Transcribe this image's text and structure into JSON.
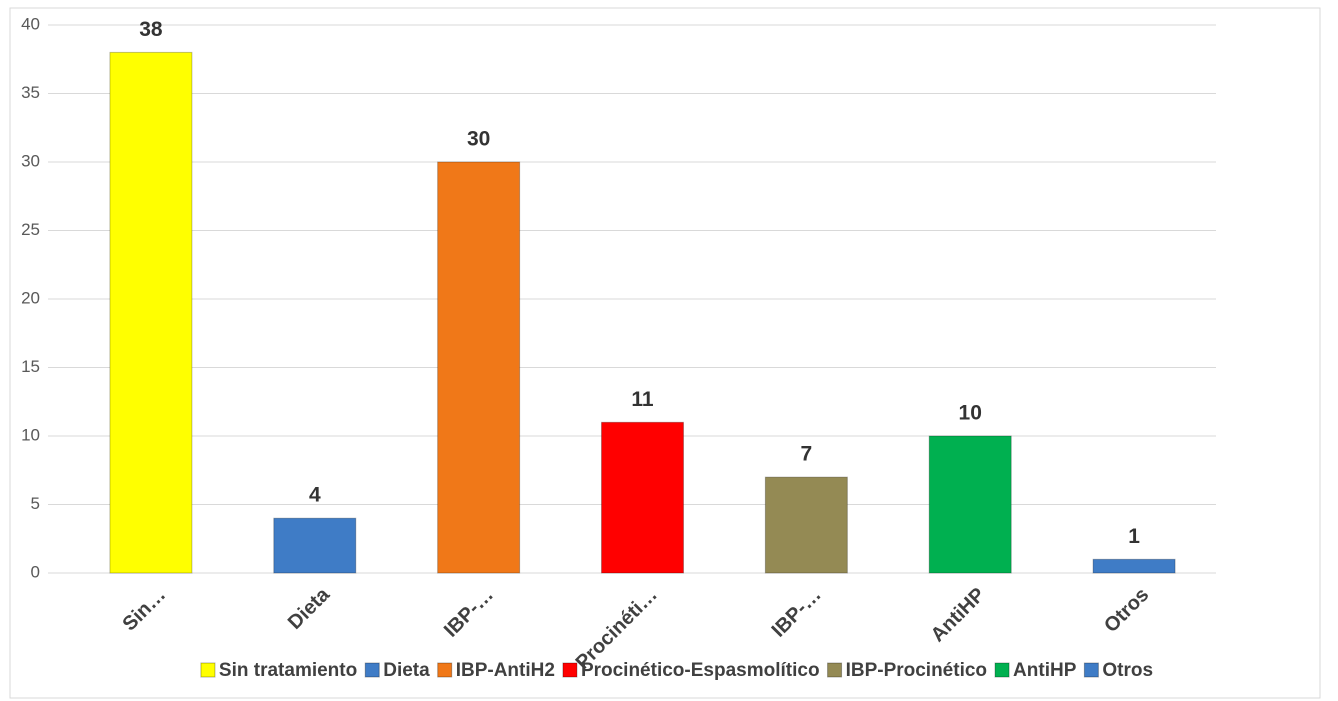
{
  "chart_data": {
    "type": "bar",
    "categories": [
      "Sin…",
      "Dieta",
      "IBP-…",
      "Procinéti…",
      "IBP-…",
      "AntiHP",
      "Otros"
    ],
    "legend": [
      "Sin tratamiento",
      "Dieta",
      "IBP-AntiH2",
      "Procinético-Espasmolítico",
      "IBP-Procinético",
      "AntiHP",
      "Otros"
    ],
    "values": [
      38,
      4,
      30,
      11,
      7,
      10,
      1
    ],
    "colors": [
      "#ffff00",
      "#3f7cc6",
      "#f07818",
      "#ff0000",
      "#948a54",
      "#00b050",
      "#3f7cc6"
    ],
    "ylim": [
      0,
      40
    ],
    "yticks": [
      0,
      5,
      10,
      15,
      20,
      25,
      30,
      35,
      40
    ],
    "grid": true
  }
}
